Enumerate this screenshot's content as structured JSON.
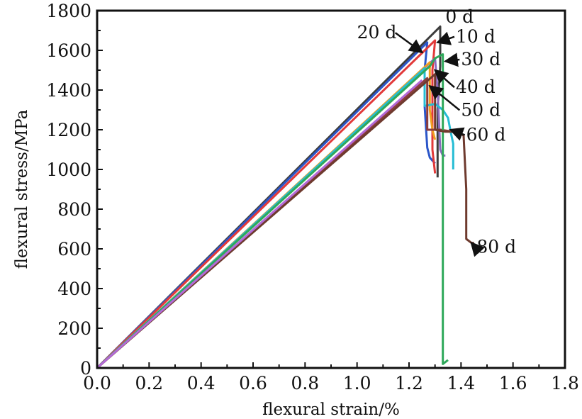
{
  "chart_data": {
    "type": "line",
    "xlabel": "flexural strain/%",
    "ylabel": "flexural stress/MPa",
    "xlim": [
      0,
      1.8
    ],
    "ylim": [
      0,
      1800
    ],
    "xticks": [
      "0.0",
      "0.2",
      "0.4",
      "0.6",
      "0.8",
      "1.0",
      "1.2",
      "1.4",
      "1.6",
      "1.8"
    ],
    "yticks": [
      "0",
      "200",
      "400",
      "600",
      "800",
      "1000",
      "1200",
      "1400",
      "1600",
      "1800"
    ],
    "grid": false,
    "series": [
      {
        "name": "0 d",
        "color": "#3d3d3d",
        "points": [
          [
            0,
            0
          ],
          [
            1.32,
            1720
          ],
          [
            1.32,
            1520
          ],
          [
            1.31,
            1300
          ],
          [
            1.31,
            960
          ]
        ]
      },
      {
        "name": "20 d",
        "color": "#2b56c9",
        "points": [
          [
            0,
            0
          ],
          [
            1.27,
            1640
          ],
          [
            1.26,
            1500
          ],
          [
            1.26,
            1320
          ],
          [
            1.27,
            1110
          ],
          [
            1.28,
            1060
          ],
          [
            1.3,
            1030
          ]
        ]
      },
      {
        "name": "10 d",
        "color": "#e23a3a",
        "points": [
          [
            0,
            0
          ],
          [
            1.3,
            1650
          ],
          [
            1.29,
            1500
          ],
          [
            1.29,
            1300
          ],
          [
            1.29,
            1100
          ],
          [
            1.3,
            980
          ]
        ]
      },
      {
        "name": "30 d",
        "color": "#8b6bbd",
        "points": [
          [
            0,
            0
          ],
          [
            1.3,
            1560
          ],
          [
            1.31,
            1400
          ],
          [
            1.32,
            1100
          ],
          [
            1.33,
            1070
          ],
          [
            1.34,
            1070
          ]
        ]
      },
      {
        "name": "40 d",
        "color": "#f0a020",
        "points": [
          [
            0,
            0
          ],
          [
            1.28,
            1540
          ],
          [
            1.28,
            1480
          ],
          [
            1.28,
            1300
          ],
          [
            1.29,
            1200
          ],
          [
            1.3,
            1150
          ]
        ]
      },
      {
        "name": "50 d",
        "color": "#26bcd4",
        "points": [
          [
            0,
            0
          ],
          [
            1.26,
            1510
          ],
          [
            1.26,
            1320
          ],
          [
            1.3,
            1330
          ],
          [
            1.33,
            1300
          ],
          [
            1.35,
            1260
          ],
          [
            1.36,
            1190
          ],
          [
            1.37,
            1130
          ],
          [
            1.37,
            1000
          ]
        ]
      },
      {
        "name": "60 d",
        "color": "#8c3b3b",
        "points": [
          [
            0,
            0
          ],
          [
            1.27,
            1460
          ],
          [
            1.27,
            1200
          ],
          [
            1.32,
            1200
          ],
          [
            1.37,
            1190
          ],
          [
            1.39,
            1180
          ]
        ]
      },
      {
        "name": "",
        "color": "#2ea85a",
        "points": [
          [
            0,
            0
          ],
          [
            1.28,
            1520
          ],
          [
            1.3,
            1560
          ],
          [
            1.33,
            1580
          ],
          [
            1.33,
            1200
          ],
          [
            1.33,
            800
          ],
          [
            1.33,
            400
          ],
          [
            1.33,
            20
          ],
          [
            1.35,
            40
          ]
        ]
      },
      {
        "name": "80 d",
        "color": "#6e3a2e",
        "points": [
          [
            0,
            0
          ],
          [
            1.3,
            1480
          ],
          [
            1.3,
            1200
          ],
          [
            1.34,
            1190
          ],
          [
            1.39,
            1190
          ],
          [
            1.41,
            1170
          ],
          [
            1.42,
            900
          ],
          [
            1.42,
            650
          ],
          [
            1.44,
            630
          ],
          [
            1.45,
            630
          ]
        ]
      },
      {
        "name": "",
        "color": "#b36ad8",
        "points": [
          [
            0,
            0
          ],
          [
            1.25,
            1450
          ]
        ]
      }
    ],
    "annotations": [
      {
        "text": "0 d",
        "x": 1.34,
        "y": 1740,
        "arrow_to": null
      },
      {
        "text": "20 d",
        "x": 1.0,
        "y": 1660,
        "arrow_to": [
          1.25,
          1590
        ]
      },
      {
        "text": "10 d",
        "x": 1.38,
        "y": 1640,
        "arrow_to": [
          1.31,
          1640
        ]
      },
      {
        "text": "30 d",
        "x": 1.4,
        "y": 1525,
        "arrow_to": [
          1.34,
          1545
        ]
      },
      {
        "text": "40 d",
        "x": 1.38,
        "y": 1385,
        "arrow_to": [
          1.3,
          1500
        ]
      },
      {
        "text": "50 d",
        "x": 1.4,
        "y": 1270,
        "arrow_to": [
          1.28,
          1420
        ]
      },
      {
        "text": "60 d",
        "x": 1.42,
        "y": 1145,
        "arrow_to": [
          1.36,
          1200
        ]
      },
      {
        "text": "80 d",
        "x": 1.46,
        "y": 580,
        "arrow_to": [
          1.44,
          630
        ]
      }
    ]
  }
}
